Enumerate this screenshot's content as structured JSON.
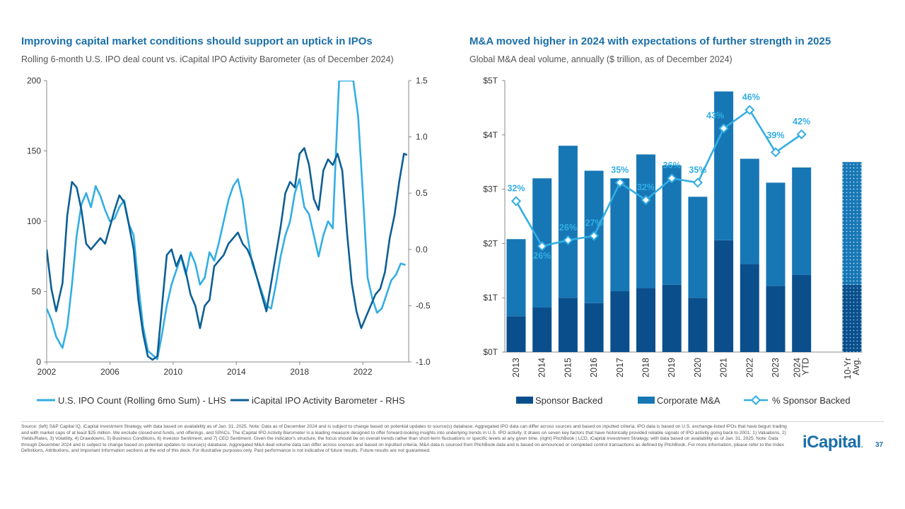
{
  "left": {
    "title": "Improving capital market conditions should support an uptick in IPOs",
    "subtitle": "Rolling 6-month U.S. IPO deal count vs. iCapital IPO Activity Barometer (as of December 2024)"
  },
  "right": {
    "title": "M&A moved higher in 2024 with expectations of further strength in 2025",
    "subtitle": "Global M&A deal volume, annually ($ trillion, as of December 2024)"
  },
  "colors": {
    "ipo_count": "#33aee4",
    "barometer": "#0d5f94",
    "sponsor": "#0a4f8c",
    "corporate": "#1777b5",
    "pct": "#33aee4"
  },
  "chart_data": [
    {
      "type": "line",
      "title": "Rolling 6-month U.S. IPO deal count vs. iCapital IPO Activity Barometer",
      "x_ticks": [
        "2002",
        "2006",
        "2010",
        "2014",
        "2018",
        "2022"
      ],
      "xlim": [
        2002,
        2024.9
      ],
      "y_left_ticks": [
        "200",
        "150",
        "100",
        "50",
        "0"
      ],
      "y_left_lim": [
        0,
        200
      ],
      "y_right_ticks": [
        "1.5",
        "1.0",
        "0.5",
        "0.0",
        "-0.5",
        "-1.0"
      ],
      "y_right_lim": [
        -1.0,
        1.5
      ],
      "series": [
        {
          "name": "U.S. IPO Count (Rolling 6mo Sum) - LHS",
          "axis": "left",
          "x": [
            2002.0,
            2002.3,
            2002.6,
            2003.0,
            2003.3,
            2003.6,
            2003.9,
            2004.2,
            2004.5,
            2004.8,
            2005.1,
            2005.4,
            2005.7,
            2006.0,
            2006.3,
            2006.6,
            2006.9,
            2007.2,
            2007.5,
            2007.8,
            2008.1,
            2008.4,
            2008.7,
            2009.0,
            2009.3,
            2009.6,
            2009.9,
            2010.2,
            2010.5,
            2010.8,
            2011.1,
            2011.4,
            2011.7,
            2012.0,
            2012.3,
            2012.6,
            2012.9,
            2013.2,
            2013.5,
            2013.8,
            2014.1,
            2014.4,
            2014.7,
            2015.0,
            2015.3,
            2015.6,
            2015.9,
            2016.2,
            2016.5,
            2016.8,
            2017.1,
            2017.4,
            2017.7,
            2018.0,
            2018.3,
            2018.6,
            2018.9,
            2019.2,
            2019.5,
            2019.8,
            2020.1,
            2020.3,
            2020.5,
            2020.8,
            2021.1,
            2021.4,
            2021.7,
            2022.0,
            2022.3,
            2022.6,
            2022.9,
            2023.2,
            2023.5,
            2023.8,
            2024.1,
            2024.4,
            2024.7
          ],
          "values": [
            38,
            30,
            18,
            10,
            25,
            55,
            90,
            112,
            120,
            110,
            125,
            118,
            108,
            100,
            102,
            110,
            115,
            98,
            90,
            55,
            25,
            8,
            5,
            2,
            20,
            40,
            55,
            65,
            75,
            62,
            78,
            70,
            55,
            60,
            78,
            72,
            85,
            100,
            115,
            125,
            130,
            115,
            90,
            70,
            60,
            50,
            40,
            38,
            55,
            75,
            90,
            100,
            120,
            130,
            110,
            105,
            90,
            75,
            90,
            100,
            95,
            150,
            200,
            200,
            200,
            200,
            175,
            120,
            60,
            45,
            35,
            38,
            48,
            58,
            62,
            70,
            69
          ]
        },
        {
          "name": "iCapital IPO Activity Barometer - RHS",
          "axis": "right",
          "x": [
            2002.0,
            2002.3,
            2002.6,
            2003.0,
            2003.3,
            2003.6,
            2003.9,
            2004.2,
            2004.5,
            2004.8,
            2005.1,
            2005.4,
            2005.7,
            2006.0,
            2006.3,
            2006.6,
            2006.9,
            2007.2,
            2007.5,
            2007.8,
            2008.1,
            2008.4,
            2008.7,
            2009.0,
            2009.3,
            2009.6,
            2009.9,
            2010.2,
            2010.5,
            2010.8,
            2011.1,
            2011.4,
            2011.7,
            2012.0,
            2012.3,
            2012.6,
            2012.9,
            2013.2,
            2013.5,
            2013.8,
            2014.1,
            2014.4,
            2014.7,
            2015.0,
            2015.3,
            2015.6,
            2015.9,
            2016.2,
            2016.5,
            2016.8,
            2017.1,
            2017.4,
            2017.7,
            2018.0,
            2018.3,
            2018.6,
            2018.9,
            2019.2,
            2019.5,
            2019.8,
            2020.1,
            2020.4,
            2020.7,
            2021.0,
            2021.3,
            2021.6,
            2021.9,
            2022.2,
            2022.5,
            2022.8,
            2023.1,
            2023.4,
            2023.7,
            2024.0,
            2024.3,
            2024.6,
            2024.8
          ],
          "values": [
            0.0,
            -0.35,
            -0.55,
            -0.3,
            0.3,
            0.6,
            0.55,
            0.35,
            0.05,
            0.0,
            0.05,
            0.1,
            0.05,
            0.2,
            0.35,
            0.48,
            0.42,
            0.22,
            0.0,
            -0.45,
            -0.75,
            -0.95,
            -0.98,
            -0.95,
            -0.5,
            -0.05,
            0.0,
            -0.15,
            -0.05,
            -0.2,
            -0.4,
            -0.5,
            -0.7,
            -0.5,
            -0.45,
            -0.15,
            -0.1,
            -0.05,
            0.05,
            0.1,
            0.15,
            0.05,
            0.0,
            -0.1,
            -0.25,
            -0.4,
            -0.55,
            -0.3,
            -0.05,
            0.2,
            0.5,
            0.6,
            0.55,
            0.85,
            0.9,
            0.75,
            0.45,
            0.35,
            0.7,
            0.8,
            0.75,
            0.85,
            0.7,
            0.15,
            -0.3,
            -0.55,
            -0.7,
            -0.6,
            -0.5,
            -0.4,
            -0.35,
            -0.2,
            0.1,
            0.3,
            0.6,
            0.85,
            0.84
          ]
        }
      ]
    },
    {
      "type": "bar",
      "stacked": true,
      "title": "Global M&A deal volume, annually ($ trillion)",
      "categories": [
        "2013",
        "2014",
        "2015",
        "2016",
        "2017",
        "2018",
        "2019",
        "2020",
        "2021",
        "2022",
        "2023",
        "2024 YTD",
        "10-Yr Avg."
      ],
      "ylim": [
        0,
        5
      ],
      "y_ticks": [
        "$5T",
        "$4T",
        "$3T",
        "$2T",
        "$1T",
        "$0T"
      ],
      "series": [
        {
          "name": "Sponsor Backed",
          "values": [
            0.66,
            0.82,
            1.0,
            0.9,
            1.12,
            1.18,
            1.24,
            1.0,
            2.06,
            1.62,
            1.22,
            1.42,
            1.24
          ]
        },
        {
          "name": "Corporate M&A",
          "values": [
            1.42,
            2.38,
            2.8,
            2.44,
            2.08,
            2.46,
            2.2,
            1.86,
            2.74,
            1.94,
            1.9,
            1.98,
            2.26
          ]
        }
      ],
      "pct_series": {
        "name": "% Sponsor Backed",
        "values": [
          32,
          26,
          26,
          27,
          35,
          32,
          36,
          35,
          43,
          46,
          39,
          42
        ],
        "labels": [
          "32%",
          "26%",
          "26%",
          "27%",
          "35%",
          "32%",
          "36%",
          "35%",
          "43%",
          "46%",
          "39%",
          "42%"
        ],
        "plot_values": [
          2.78,
          1.95,
          2.06,
          2.14,
          3.12,
          2.8,
          3.2,
          3.12,
          4.12,
          4.46,
          3.68,
          4.01
        ]
      }
    }
  ],
  "legend_left": [
    "U.S. IPO Count (Rolling 6mo Sum) - LHS",
    "iCapital IPO Activity Barometer - RHS"
  ],
  "legend_right": [
    "Sponsor Backed",
    "Corporate M&A",
    "% Sponsor Backed"
  ],
  "footnote": "Source: (left) S&P Capital IQ, iCapital Investment Strategy, with data based on availability as of Jan. 31, 2025. Note: Data as of December 2024 and is subject to change based on potential updates to source(s) database. Aggregated IPO data can differ across sources and based on inputted criteria. IPO data is based on U.S. exchange-listed IPOs that have begun trading and with market caps of at least $25 million. We exclude closed-end funds, unit offerings, and SPACs. The iCapital IPO Activity Barometer is a leading measure designed to offer forward-looking insights into underlying trends in U.S. IPO activity. It draws on seven key factors that have historically provided reliable signals of IPO activity going back to 2001: 1) Valuations, 2) Yields/Rates, 3) Volatility, 4) Drawdowns, 5) Business Conditions, 6) Investor Sentiment, and 7) CEO Sentiment. Given the indicator's structure, the focus should be on overall trends rather than short-term fluctuations or specific levels at any given time. (right) PitchBook | LCD, iCapital Investment Strategy, with data based on availability as of Jan. 31, 2025. Note: Data through December 2024 and is subject to change based on potential updates to source(s) database. Aggregated M&A deal volume data can differ across sources and based on inputted criteria. M&A data is sourced from PitchBook data and is based on announced or completed control transactions as defined by PitchBook. For more information, please refer to the Index Definitions, Attributions, and Important Information sections at the end of this deck. For illustrative purposes only. Past performance is not indicative of future results. Future results are not guaranteed.",
  "brand": "iCapital",
  "page_number": "37"
}
